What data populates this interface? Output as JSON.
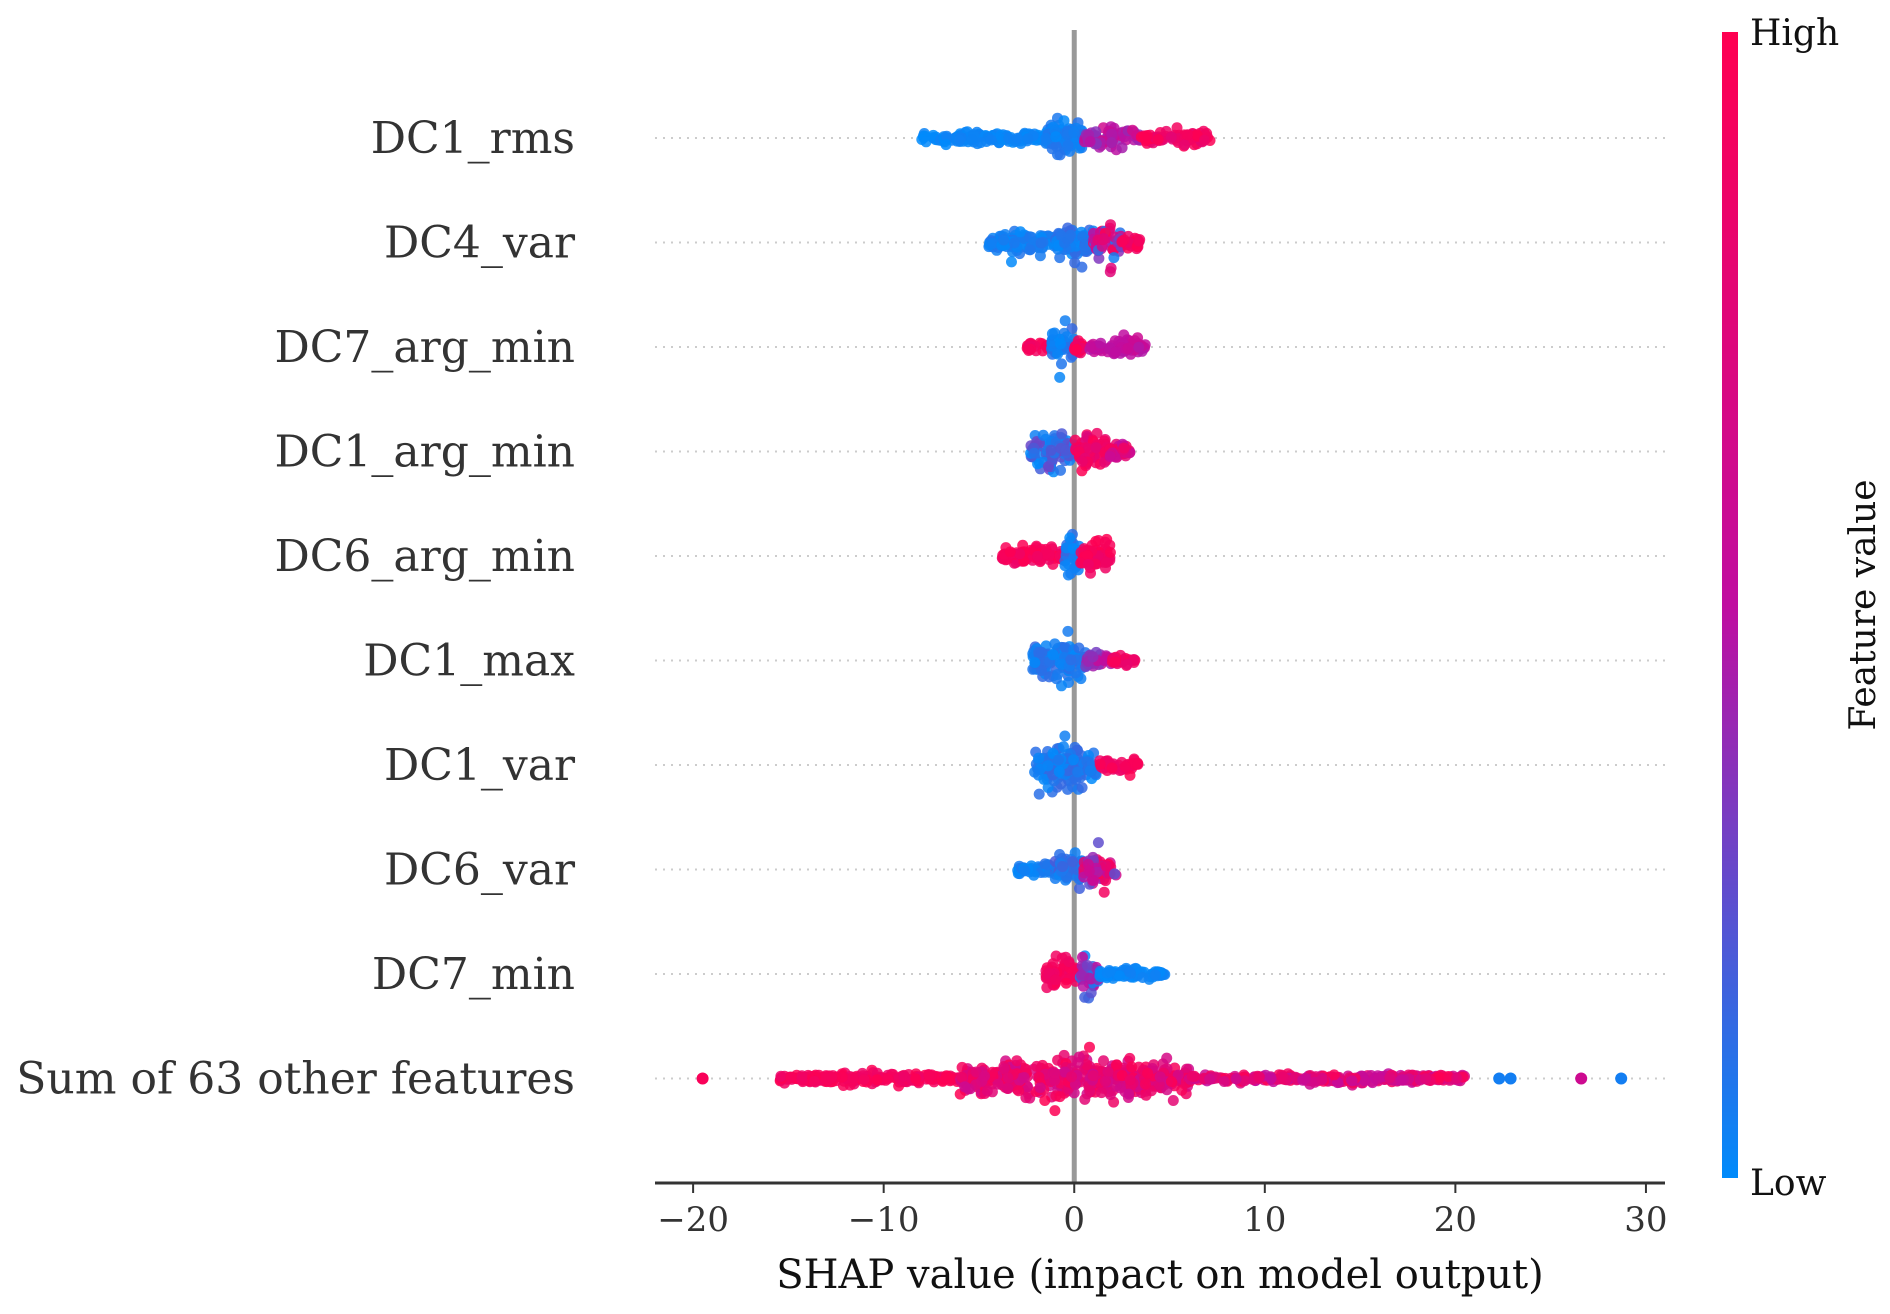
{
  "chart_data": {
    "type": "scatter",
    "subtype": "shap-beeswarm",
    "title": "",
    "xlabel": "SHAP value (impact on model output)",
    "ylabel": "",
    "xlim": [
      -22,
      31
    ],
    "xticks": [
      -20,
      -10,
      0,
      10,
      20,
      30
    ],
    "xtick_labels": [
      "−20",
      "−10",
      "0",
      "10",
      "20",
      "30"
    ],
    "colorbar": {
      "label": "Feature value",
      "high": "High",
      "low": "Low",
      "high_color": "#ff0051",
      "mid_color": "#c00da0",
      "low_color": "#008bfb"
    },
    "features": [
      {
        "name": "DC1_rms",
        "segments": [
          {
            "x0": -8.0,
            "x1": -1.5,
            "vlow": 0.0,
            "vhigh": 0.05,
            "width": 0.12
          },
          {
            "x0": -1.5,
            "x1": 0.5,
            "vlow": 0.0,
            "vhigh": 0.1,
            "width": 0.45
          },
          {
            "x0": 0.5,
            "x1": 3.5,
            "vlow": 0.35,
            "vhigh": 0.65,
            "width": 0.18
          },
          {
            "x0": 3.5,
            "x1": 7.2,
            "vlow": 0.75,
            "vhigh": 1.0,
            "width": 0.14
          }
        ]
      },
      {
        "name": "DC4_var",
        "segments": [
          {
            "x0": -4.5,
            "x1": -1.0,
            "vlow": 0.0,
            "vhigh": 0.1,
            "width": 0.25
          },
          {
            "x0": -1.0,
            "x1": 1.0,
            "vlow": 0.0,
            "vhigh": 0.15,
            "width": 0.42
          },
          {
            "x0": 1.0,
            "x1": 2.5,
            "vlow": 0.0,
            "vhigh": 1.0,
            "width": 0.4
          },
          {
            "x0": 2.5,
            "x1": 3.5,
            "vlow": 0.8,
            "vhigh": 1.0,
            "width": 0.15
          }
        ]
      },
      {
        "name": "DC7_arg_min",
        "segments": [
          {
            "x0": -2.5,
            "x1": -1.2,
            "vlow": 0.85,
            "vhigh": 1.0,
            "width": 0.12
          },
          {
            "x0": -1.2,
            "x1": 0.0,
            "vlow": 0.0,
            "vhigh": 0.15,
            "width": 0.45
          },
          {
            "x0": 0.0,
            "x1": 0.5,
            "vlow": 0.85,
            "vhigh": 1.0,
            "width": 0.1
          },
          {
            "x0": 0.8,
            "x1": 3.9,
            "vlow": 0.45,
            "vhigh": 0.6,
            "width": 0.18
          }
        ]
      },
      {
        "name": "DC1_arg_min",
        "segments": [
          {
            "x0": -2.3,
            "x1": 0.0,
            "vlow": 0.0,
            "vhigh": 0.3,
            "width": 0.42
          },
          {
            "x0": 0.0,
            "x1": 1.8,
            "vlow": 0.7,
            "vhigh": 1.0,
            "width": 0.4
          },
          {
            "x0": 1.8,
            "x1": 3.0,
            "vlow": 0.5,
            "vhigh": 0.95,
            "width": 0.2
          }
        ]
      },
      {
        "name": "DC6_arg_min",
        "segments": [
          {
            "x0": -3.8,
            "x1": -0.5,
            "vlow": 0.85,
            "vhigh": 1.0,
            "width": 0.22
          },
          {
            "x0": -0.5,
            "x1": 0.3,
            "vlow": 0.0,
            "vhigh": 0.15,
            "width": 0.5
          },
          {
            "x0": 0.3,
            "x1": 1.9,
            "vlow": 0.85,
            "vhigh": 1.0,
            "width": 0.42
          }
        ]
      },
      {
        "name": "DC1_max",
        "segments": [
          {
            "x0": -2.3,
            "x1": 0.6,
            "vlow": 0.0,
            "vhigh": 0.15,
            "width": 0.48
          },
          {
            "x0": 0.6,
            "x1": 2.0,
            "vlow": 0.3,
            "vhigh": 0.6,
            "width": 0.2
          },
          {
            "x0": 2.0,
            "x1": 3.2,
            "vlow": 0.8,
            "vhigh": 1.0,
            "width": 0.12
          }
        ]
      },
      {
        "name": "DC1_var",
        "segments": [
          {
            "x0": -2.1,
            "x1": 1.2,
            "vlow": 0.0,
            "vhigh": 0.15,
            "width": 0.48
          },
          {
            "x0": 1.2,
            "x1": 3.4,
            "vlow": 0.85,
            "vhigh": 1.0,
            "width": 0.14
          }
        ]
      },
      {
        "name": "DC6_var",
        "segments": [
          {
            "x0": -3.0,
            "x1": -1.0,
            "vlow": 0.0,
            "vhigh": 0.1,
            "width": 0.12
          },
          {
            "x0": -1.0,
            "x1": 0.5,
            "vlow": 0.0,
            "vhigh": 0.2,
            "width": 0.4
          },
          {
            "x0": 0.5,
            "x1": 2.2,
            "vlow": 0.2,
            "vhigh": 1.0,
            "width": 0.38
          }
        ]
      },
      {
        "name": "DC7_min",
        "segments": [
          {
            "x0": -1.5,
            "x1": 0.3,
            "vlow": 0.85,
            "vhigh": 1.0,
            "width": 0.4
          },
          {
            "x0": 0.3,
            "x1": 1.3,
            "vlow": 0.0,
            "vhigh": 0.6,
            "width": 0.42
          },
          {
            "x0": 1.3,
            "x1": 4.8,
            "vlow": 0.0,
            "vhigh": 0.05,
            "width": 0.12
          }
        ]
      },
      {
        "name": "Sum of 63 other features",
        "segments": [
          {
            "x0": -15.5,
            "x1": -6.0,
            "vlow": 0.85,
            "vhigh": 1.0,
            "width": 0.12
          },
          {
            "x0": -6.0,
            "x1": 6.0,
            "vlow": 0.6,
            "vhigh": 1.0,
            "width": 0.45
          },
          {
            "x0": 6.0,
            "x1": 20.5,
            "vlow": 0.5,
            "vhigh": 1.0,
            "width": 0.1
          }
        ],
        "outliers": [
          {
            "x": -19.5,
            "v": 0.95
          },
          {
            "x": 22.3,
            "v": 0.05
          },
          {
            "x": 22.9,
            "v": 0.05
          },
          {
            "x": 26.6,
            "v": 0.6
          },
          {
            "x": 28.7,
            "v": 0.05
          }
        ]
      }
    ]
  }
}
